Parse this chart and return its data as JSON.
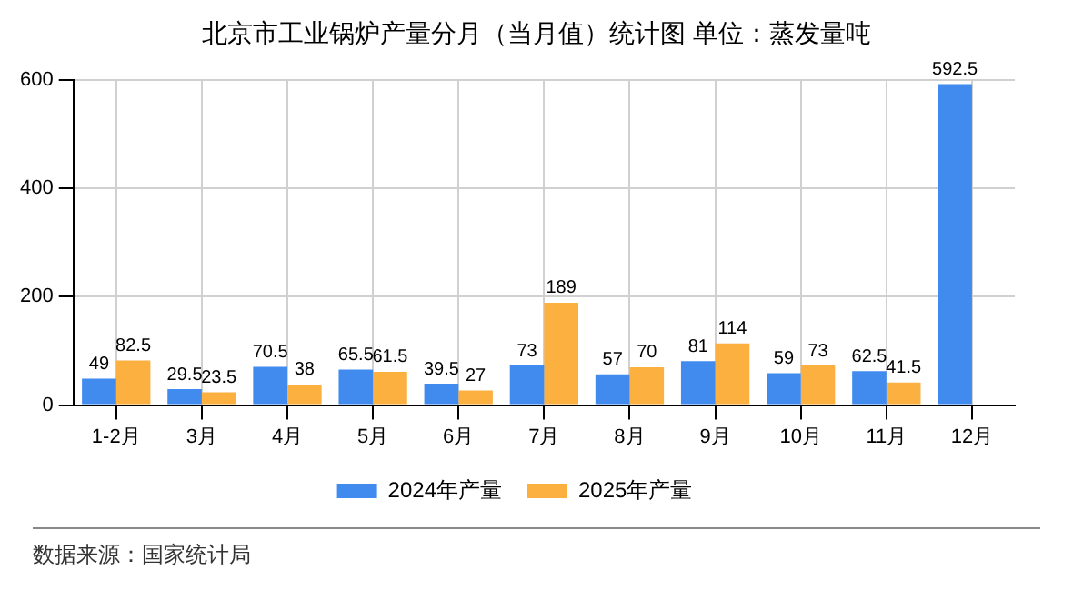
{
  "chart_data": {
    "type": "bar",
    "title": "北京市工业锅炉产量分月（当月值）统计图 单位：蒸发量吨",
    "categories": [
      "1-2月",
      "3月",
      "4月",
      "5月",
      "6月",
      "7月",
      "8月",
      "9月",
      "10月",
      "11月",
      "12月"
    ],
    "series": [
      {
        "name": "2024年产量",
        "color": "#418bef",
        "values": [
          49,
          29.5,
          70.5,
          65.5,
          39.5,
          73,
          57,
          81,
          59,
          62.5,
          592.5
        ]
      },
      {
        "name": "2025年产量",
        "color": "#fbb040",
        "values": [
          82.5,
          23.5,
          38,
          61.5,
          27,
          189,
          70,
          114,
          73,
          41.5,
          null
        ]
      }
    ],
    "ylim": [
      0,
      600
    ],
    "yticks": [
      0,
      200,
      400,
      600
    ],
    "grid": true,
    "legend": "bottom",
    "data_labels": true,
    "annotations": [
      "数据来源：国家统计局"
    ]
  }
}
